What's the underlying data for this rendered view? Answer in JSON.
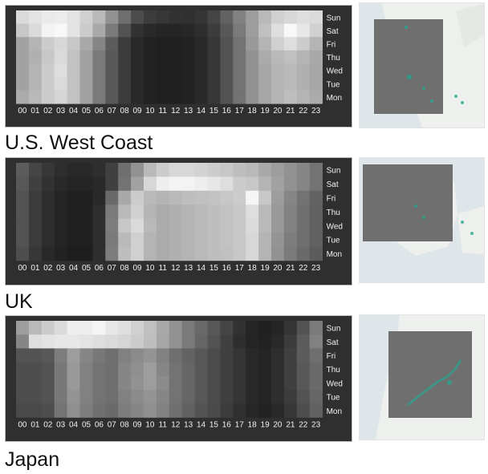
{
  "chart_data": [
    {
      "type": "heatmap",
      "region": "U.S. West Coast",
      "x": [
        "00",
        "01",
        "02",
        "03",
        "04",
        "05",
        "06",
        "07",
        "08",
        "09",
        "10",
        "11",
        "12",
        "13",
        "14",
        "15",
        "16",
        "17",
        "18",
        "19",
        "20",
        "21",
        "22",
        "23"
      ],
      "y": [
        "Sun",
        "Sat",
        "Fri",
        "Thu",
        "Wed",
        "Tue",
        "Mon"
      ],
      "values": [
        [
          0.86,
          0.9,
          0.93,
          0.94,
          0.9,
          0.82,
          0.72,
          0.55,
          0.4,
          0.25,
          0.18,
          0.16,
          0.14,
          0.13,
          0.15,
          0.22,
          0.35,
          0.48,
          0.6,
          0.72,
          0.82,
          0.85,
          0.88,
          0.86
        ],
        [
          0.78,
          0.86,
          0.97,
          0.99,
          0.9,
          0.8,
          0.65,
          0.45,
          0.28,
          0.14,
          0.1,
          0.08,
          0.08,
          0.09,
          0.12,
          0.18,
          0.3,
          0.45,
          0.6,
          0.75,
          0.88,
          0.99,
          0.92,
          0.82
        ],
        [
          0.62,
          0.7,
          0.8,
          0.85,
          0.78,
          0.65,
          0.5,
          0.32,
          0.18,
          0.1,
          0.07,
          0.06,
          0.06,
          0.07,
          0.1,
          0.16,
          0.28,
          0.42,
          0.58,
          0.7,
          0.82,
          0.88,
          0.8,
          0.7
        ],
        [
          0.62,
          0.68,
          0.78,
          0.86,
          0.76,
          0.62,
          0.45,
          0.3,
          0.18,
          0.1,
          0.07,
          0.06,
          0.06,
          0.07,
          0.1,
          0.16,
          0.28,
          0.42,
          0.55,
          0.66,
          0.72,
          0.75,
          0.7,
          0.65
        ],
        [
          0.62,
          0.7,
          0.8,
          0.88,
          0.76,
          0.62,
          0.45,
          0.3,
          0.18,
          0.1,
          0.07,
          0.06,
          0.06,
          0.07,
          0.1,
          0.16,
          0.28,
          0.42,
          0.55,
          0.64,
          0.7,
          0.72,
          0.68,
          0.64
        ],
        [
          0.62,
          0.7,
          0.8,
          0.86,
          0.76,
          0.62,
          0.45,
          0.3,
          0.18,
          0.1,
          0.07,
          0.06,
          0.06,
          0.07,
          0.1,
          0.16,
          0.28,
          0.42,
          0.55,
          0.64,
          0.7,
          0.72,
          0.68,
          0.64
        ],
        [
          0.66,
          0.72,
          0.8,
          0.84,
          0.76,
          0.62,
          0.45,
          0.3,
          0.18,
          0.1,
          0.07,
          0.06,
          0.06,
          0.07,
          0.1,
          0.16,
          0.28,
          0.42,
          0.55,
          0.64,
          0.7,
          0.74,
          0.7,
          0.66
        ]
      ]
    },
    {
      "type": "heatmap",
      "region": "UK",
      "x": [
        "00",
        "01",
        "02",
        "03",
        "04",
        "05",
        "06",
        "07",
        "08",
        "09",
        "10",
        "11",
        "12",
        "13",
        "14",
        "15",
        "16",
        "17",
        "18",
        "19",
        "20",
        "21",
        "22",
        "23"
      ],
      "y": [
        "Sun",
        "Sat",
        "Fri",
        "Thu",
        "Wed",
        "Tue",
        "Mon"
      ],
      "values": [
        [
          0.32,
          0.22,
          0.16,
          0.12,
          0.1,
          0.1,
          0.12,
          0.2,
          0.4,
          0.55,
          0.72,
          0.8,
          0.85,
          0.85,
          0.83,
          0.8,
          0.78,
          0.74,
          0.72,
          0.65,
          0.6,
          0.55,
          0.5,
          0.42
        ],
        [
          0.3,
          0.2,
          0.14,
          0.1,
          0.08,
          0.08,
          0.1,
          0.2,
          0.42,
          0.62,
          0.85,
          0.95,
          0.97,
          0.97,
          0.95,
          0.92,
          0.88,
          0.8,
          0.78,
          0.7,
          0.62,
          0.55,
          0.5,
          0.42
        ],
        [
          0.28,
          0.18,
          0.12,
          0.08,
          0.06,
          0.06,
          0.1,
          0.38,
          0.65,
          0.8,
          0.72,
          0.7,
          0.72,
          0.74,
          0.75,
          0.76,
          0.78,
          0.8,
          0.98,
          0.78,
          0.6,
          0.5,
          0.42,
          0.35
        ],
        [
          0.28,
          0.18,
          0.12,
          0.08,
          0.06,
          0.06,
          0.12,
          0.45,
          0.72,
          0.82,
          0.7,
          0.66,
          0.68,
          0.7,
          0.72,
          0.74,
          0.76,
          0.78,
          0.88,
          0.72,
          0.58,
          0.48,
          0.4,
          0.34
        ],
        [
          0.28,
          0.18,
          0.12,
          0.08,
          0.06,
          0.06,
          0.12,
          0.46,
          0.78,
          0.86,
          0.72,
          0.66,
          0.68,
          0.7,
          0.72,
          0.74,
          0.76,
          0.78,
          0.86,
          0.72,
          0.58,
          0.48,
          0.4,
          0.34
        ],
        [
          0.28,
          0.18,
          0.12,
          0.08,
          0.06,
          0.06,
          0.12,
          0.45,
          0.72,
          0.82,
          0.7,
          0.66,
          0.68,
          0.7,
          0.72,
          0.74,
          0.76,
          0.78,
          0.85,
          0.7,
          0.56,
          0.46,
          0.4,
          0.34
        ],
        [
          0.26,
          0.16,
          0.1,
          0.07,
          0.05,
          0.05,
          0.12,
          0.46,
          0.74,
          0.82,
          0.7,
          0.66,
          0.68,
          0.7,
          0.72,
          0.74,
          0.75,
          0.78,
          0.85,
          0.7,
          0.55,
          0.45,
          0.38,
          0.32
        ]
      ]
    },
    {
      "type": "heatmap",
      "region": "Japan",
      "x": [
        "00",
        "01",
        "02",
        "03",
        "04",
        "05",
        "06",
        "07",
        "08",
        "09",
        "10",
        "11",
        "12",
        "13",
        "14",
        "15",
        "16",
        "17",
        "18",
        "19",
        "20",
        "21",
        "22",
        "23"
      ],
      "y": [
        "Sun",
        "Sat",
        "Fri",
        "Thu",
        "Wed",
        "Tue",
        "Mon"
      ],
      "values": [
        [
          0.6,
          0.72,
          0.8,
          0.86,
          0.95,
          0.95,
          0.98,
          0.92,
          0.88,
          0.82,
          0.75,
          0.65,
          0.55,
          0.45,
          0.38,
          0.3,
          0.22,
          0.14,
          0.08,
          0.06,
          0.08,
          0.15,
          0.28,
          0.45
        ],
        [
          0.5,
          0.88,
          0.9,
          0.92,
          0.92,
          0.9,
          0.88,
          0.86,
          0.84,
          0.8,
          0.74,
          0.64,
          0.55,
          0.45,
          0.36,
          0.28,
          0.2,
          0.12,
          0.08,
          0.07,
          0.1,
          0.18,
          0.32,
          0.48
        ],
        [
          0.28,
          0.28,
          0.3,
          0.46,
          0.6,
          0.5,
          0.44,
          0.4,
          0.48,
          0.52,
          0.56,
          0.48,
          0.4,
          0.35,
          0.3,
          0.25,
          0.2,
          0.15,
          0.1,
          0.08,
          0.12,
          0.2,
          0.32,
          0.4
        ],
        [
          0.26,
          0.26,
          0.28,
          0.44,
          0.58,
          0.48,
          0.42,
          0.4,
          0.5,
          0.54,
          0.6,
          0.5,
          0.42,
          0.36,
          0.3,
          0.25,
          0.2,
          0.15,
          0.1,
          0.08,
          0.12,
          0.2,
          0.3,
          0.38
        ],
        [
          0.26,
          0.26,
          0.28,
          0.44,
          0.58,
          0.48,
          0.42,
          0.4,
          0.5,
          0.55,
          0.6,
          0.52,
          0.42,
          0.36,
          0.3,
          0.25,
          0.2,
          0.15,
          0.1,
          0.08,
          0.12,
          0.2,
          0.3,
          0.38
        ],
        [
          0.26,
          0.26,
          0.28,
          0.44,
          0.56,
          0.48,
          0.42,
          0.4,
          0.48,
          0.52,
          0.56,
          0.5,
          0.42,
          0.36,
          0.3,
          0.25,
          0.2,
          0.15,
          0.1,
          0.08,
          0.12,
          0.18,
          0.28,
          0.36
        ],
        [
          0.24,
          0.24,
          0.26,
          0.42,
          0.54,
          0.46,
          0.4,
          0.38,
          0.46,
          0.5,
          0.54,
          0.48,
          0.4,
          0.34,
          0.28,
          0.24,
          0.18,
          0.13,
          0.09,
          0.07,
          0.1,
          0.16,
          0.26,
          0.34
        ]
      ]
    }
  ],
  "colors": {
    "panel_background": "#2f2f2f",
    "tick_text": "#f2f2f2",
    "map_land": "#eef0ee",
    "map_water": "#dfe6ea",
    "map_overlay": "#6f6f6f",
    "map_points": "#2aa48f"
  }
}
